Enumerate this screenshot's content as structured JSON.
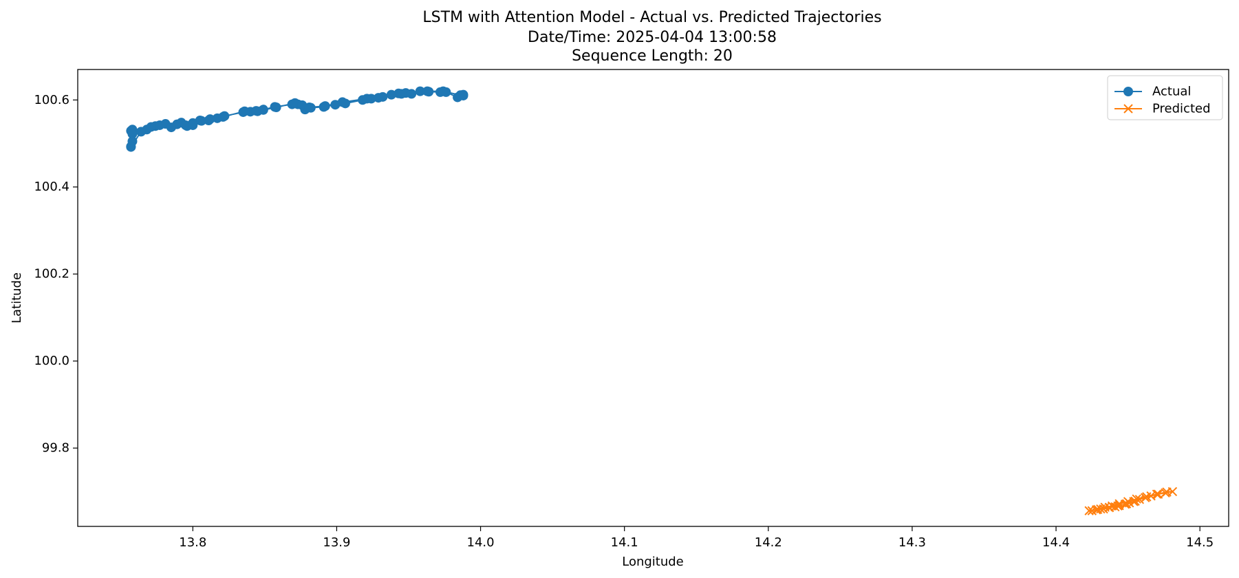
{
  "chart_data": {
    "type": "line",
    "title": [
      "LSTM with Attention Model - Actual vs. Predicted Trajectories",
      "Date/Time: 2025-04-04 13:00:58",
      "Sequence Length: 20"
    ],
    "xlabel": "Longitude",
    "ylabel": "Latitude",
    "xlim": [
      13.72,
      14.52
    ],
    "ylim": [
      99.62,
      100.67
    ],
    "xticks": [
      13.8,
      13.9,
      14.0,
      14.1,
      14.2,
      14.3,
      14.4,
      14.5
    ],
    "xtick_labels": [
      "13.8",
      "13.9",
      "14.0",
      "14.1",
      "14.2",
      "14.3",
      "14.4",
      "14.5"
    ],
    "yticks": [
      99.8,
      100.0,
      100.2,
      100.4,
      100.6
    ],
    "ytick_labels": [
      "99.8",
      "100.0",
      "100.2",
      "100.4",
      "100.6"
    ],
    "grid": false,
    "legend_position": "top-right",
    "series": [
      {
        "name": "Actual",
        "color": "#1f77b4",
        "marker": "circle",
        "x": [
          13.988,
          13.984,
          13.976,
          13.972,
          13.964,
          13.958,
          13.948,
          13.943,
          13.938,
          13.929,
          13.924,
          13.918,
          13.906,
          13.899,
          13.891,
          13.882,
          13.878,
          13.873,
          13.869,
          13.857,
          13.849,
          13.845,
          13.84,
          13.835,
          13.822,
          13.817,
          13.811,
          13.805,
          13.8,
          13.796,
          13.789,
          13.781,
          13.774,
          13.768,
          13.758,
          13.757,
          13.758,
          13.758,
          13.757,
          13.757,
          13.764,
          13.771,
          13.777,
          13.785,
          13.792,
          13.795,
          13.8,
          13.806,
          13.812,
          13.821,
          13.836,
          13.844,
          13.849,
          13.858,
          13.871,
          13.876,
          13.881,
          13.892,
          13.904,
          13.921,
          13.932,
          13.945,
          13.952,
          13.963,
          13.974,
          13.986,
          13.988
        ],
        "y": [
          100.61,
          100.606,
          100.618,
          100.618,
          100.619,
          100.62,
          100.616,
          100.615,
          100.612,
          100.605,
          100.603,
          100.6,
          100.592,
          100.589,
          100.584,
          100.582,
          100.578,
          100.59,
          100.59,
          100.584,
          100.578,
          100.574,
          100.573,
          100.572,
          100.563,
          100.558,
          100.553,
          100.553,
          100.547,
          100.54,
          100.544,
          100.545,
          100.54,
          100.532,
          100.532,
          100.529,
          100.522,
          100.505,
          100.493,
          100.492,
          100.527,
          100.538,
          100.542,
          100.537,
          100.548,
          100.542,
          100.542,
          100.552,
          100.556,
          100.561,
          100.574,
          100.575,
          100.577,
          100.583,
          100.593,
          100.588,
          100.583,
          100.586,
          100.595,
          100.603,
          100.607,
          100.614,
          100.614,
          100.62,
          100.62,
          100.611,
          100.612
        ]
      },
      {
        "name": "Predicted",
        "color": "#ff7f0e",
        "marker": "x",
        "x": [
          14.423,
          14.428,
          14.433,
          14.437,
          14.441,
          14.444,
          14.448,
          14.451,
          14.454,
          14.458,
          14.462,
          14.466,
          14.471,
          14.476,
          14.481,
          14.477,
          14.47,
          14.463,
          14.456,
          14.45,
          14.444,
          14.439,
          14.434,
          14.429,
          14.425,
          14.431,
          14.437,
          14.443,
          14.449,
          14.455
        ],
        "y": [
          99.656,
          99.658,
          99.66,
          99.663,
          99.665,
          99.668,
          99.671,
          99.674,
          99.677,
          99.682,
          99.686,
          99.69,
          99.694,
          99.697,
          99.7,
          99.699,
          99.694,
          99.688,
          99.683,
          99.677,
          99.672,
          99.667,
          99.664,
          99.659,
          99.656,
          99.66,
          99.664,
          99.667,
          99.672,
          99.678
        ]
      }
    ]
  }
}
